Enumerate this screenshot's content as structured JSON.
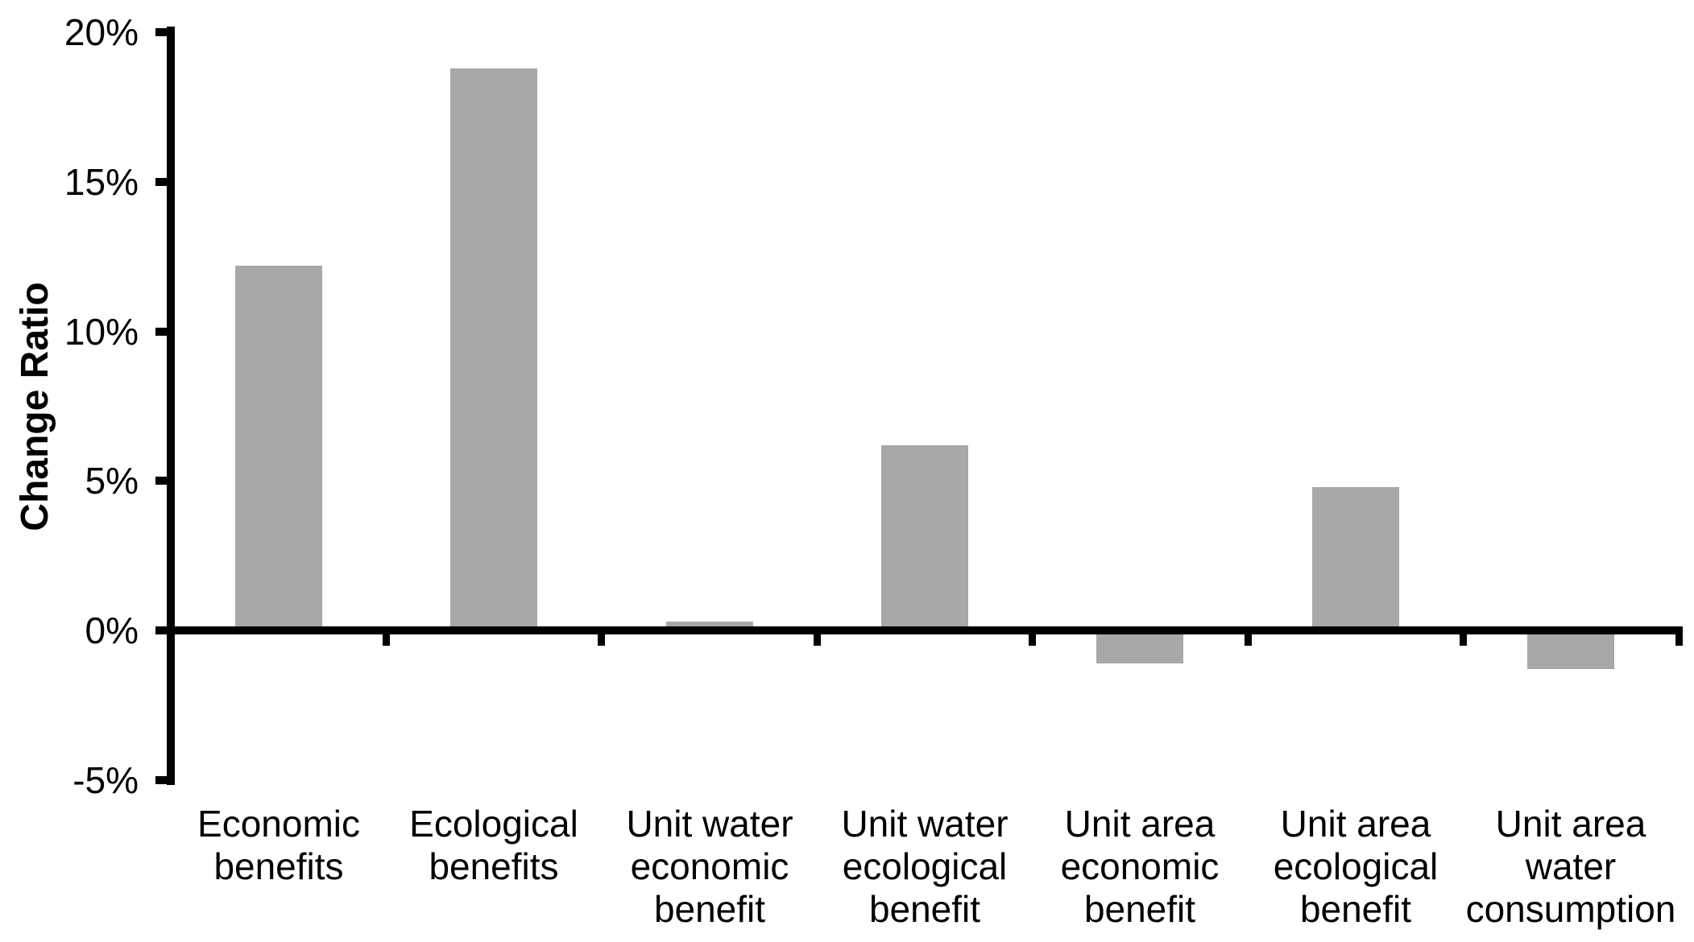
{
  "chart_data": {
    "type": "bar",
    "title": "",
    "xlabel": "",
    "ylabel": "Change Ratio",
    "categories": [
      "Economic benefits",
      "Ecological benefits",
      "Unit water economic benefit",
      "Unit water ecological benefit",
      "Unit area economic benefit",
      "Unit area ecological benefit",
      "Unit area water consumption"
    ],
    "values": [
      12.2,
      18.8,
      0.3,
      6.2,
      -1.1,
      4.8,
      -1.3
    ],
    "value_unit": "%",
    "ylim": [
      -5,
      20
    ],
    "yticks": [
      20,
      15,
      10,
      5,
      0,
      -5
    ],
    "ytick_labels": [
      "20%",
      "15%",
      "10%",
      "5%",
      "0%",
      "-5%"
    ],
    "grid": false,
    "legend": false,
    "bar_color": "#a8a8a8",
    "axis_color": "#000000",
    "text_color": "#000000",
    "background_color": "#ffffff"
  }
}
